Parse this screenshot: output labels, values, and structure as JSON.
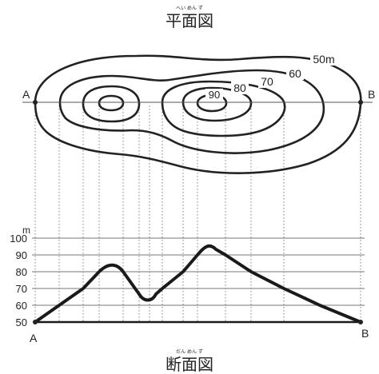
{
  "plan": {
    "title": "平面図",
    "ruby": "へい めん ず",
    "contour_labels": [
      "50m",
      "60",
      "70",
      "80",
      "90"
    ],
    "point_a": "A",
    "point_b": "B"
  },
  "section": {
    "title": "断面図",
    "ruby": "だん めん ず",
    "unit": "m",
    "ticks": [
      "100",
      "90",
      "80",
      "70",
      "60",
      "50"
    ],
    "point_a": "A",
    "point_b": "B"
  }
}
